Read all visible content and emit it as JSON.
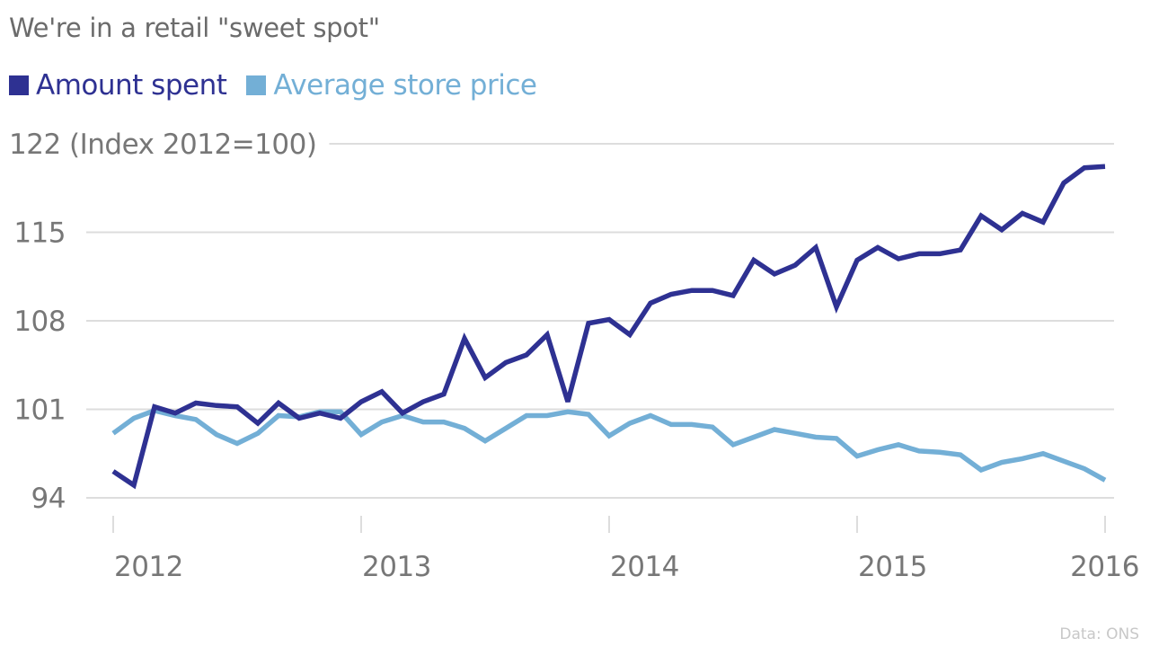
{
  "chart_data": {
    "type": "line",
    "title": "We're in a retail \"sweet spot\"",
    "ylabel": "(Index 2012=100)",
    "xlabel": "",
    "ylim": [
      94,
      122
    ],
    "yticks": [
      94,
      101,
      108,
      115,
      122
    ],
    "ytick_labels": [
      "94",
      "101",
      "108",
      "115",
      "122 (Index 2012=100)"
    ],
    "xlim": [
      2012,
      2016
    ],
    "xticks": [
      2012,
      2013,
      2014,
      2015,
      2016
    ],
    "xtick_labels": [
      "2012",
      "2013",
      "2014",
      "2015",
      "2016"
    ],
    "grid": "horizontal",
    "legend_position": "top-left",
    "x_step": "monthly, Jan 2012 to Jan 2016",
    "series": [
      {
        "name": "Amount spent",
        "color": "#2e3192",
        "values": [
          96.1,
          95.0,
          101.2,
          100.7,
          101.5,
          101.3,
          101.2,
          99.9,
          101.5,
          100.3,
          100.7,
          100.3,
          101.6,
          102.4,
          100.7,
          101.6,
          102.2,
          106.6,
          103.5,
          104.7,
          105.3,
          106.9,
          101.6,
          107.8,
          108.1,
          106.9,
          109.4,
          110.1,
          110.4,
          110.4,
          110.0,
          112.8,
          111.7,
          112.4,
          113.8,
          109.1,
          112.8,
          113.8,
          112.9,
          113.3,
          113.3,
          113.6,
          116.3,
          115.2,
          116.5,
          115.8,
          118.9,
          120.1,
          120.2
        ]
      },
      {
        "name": "Average store price",
        "color": "#73afd6",
        "values": [
          99.1,
          100.3,
          100.9,
          100.5,
          100.2,
          99.0,
          98.3,
          99.1,
          100.5,
          100.4,
          100.8,
          100.8,
          99.0,
          100.0,
          100.5,
          100.0,
          100.0,
          99.5,
          98.5,
          99.5,
          100.5,
          100.5,
          100.8,
          100.6,
          98.9,
          99.9,
          100.5,
          99.8,
          99.8,
          99.6,
          98.2,
          98.8,
          99.4,
          99.1,
          98.8,
          98.7,
          97.3,
          97.8,
          98.2,
          97.7,
          97.6,
          97.4,
          96.2,
          96.8,
          97.1,
          97.5,
          96.9,
          96.3,
          95.4
        ]
      }
    ]
  },
  "source": "Data: ONS",
  "colors": {
    "title": "#6b6b6b",
    "axis_text": "#777777",
    "grid": "#dddddd",
    "source": "#c8c8c8"
  }
}
